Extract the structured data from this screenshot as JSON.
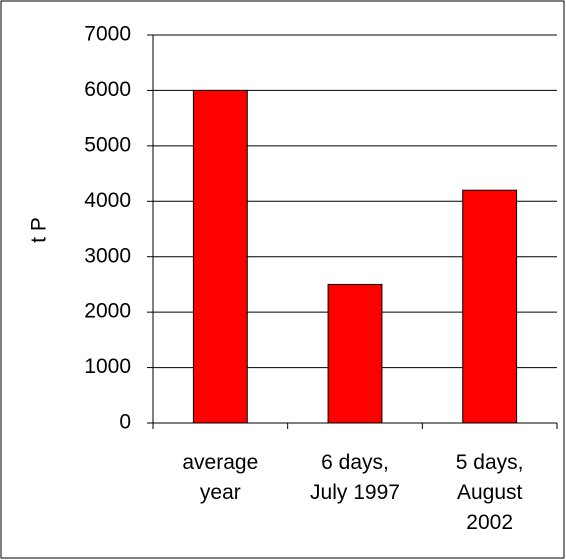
{
  "chart_data": {
    "type": "bar",
    "ylabel": "t P",
    "categories": [
      "average\nyear",
      "6 days,\nJuly 1997",
      "5 days,\nAugust\n2002"
    ],
    "values": [
      6000,
      2500,
      4200
    ],
    "color": "#ff0000",
    "ylim": [
      0,
      7000
    ],
    "yticks": [
      0,
      1000,
      2000,
      3000,
      4000,
      5000,
      6000,
      7000
    ],
    "grid": true
  }
}
